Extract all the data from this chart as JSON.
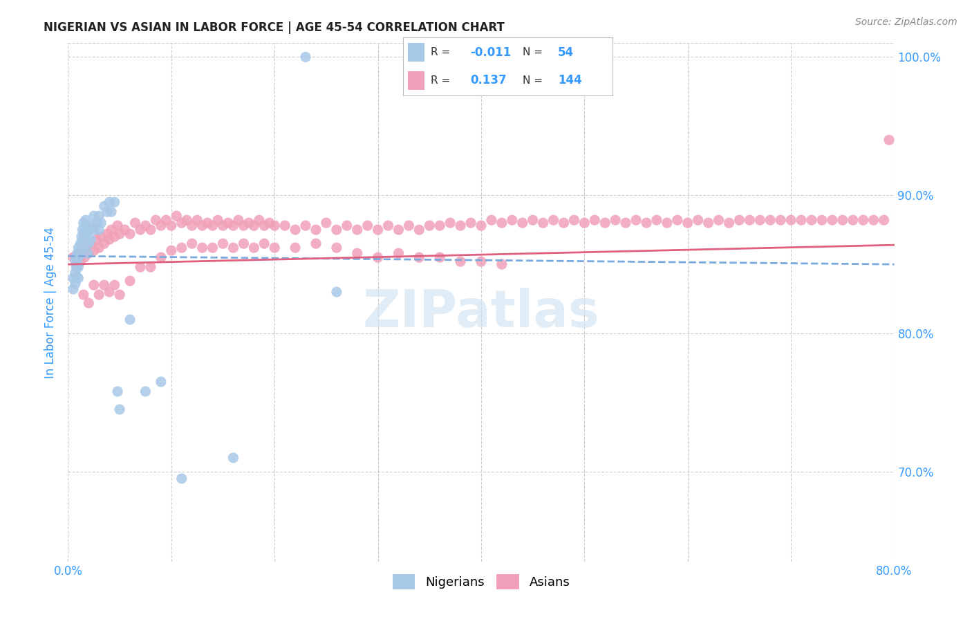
{
  "title": "NIGERIAN VS ASIAN IN LABOR FORCE | AGE 45-54 CORRELATION CHART",
  "source": "Source: ZipAtlas.com",
  "ylabel": "In Labor Force | Age 45-54",
  "xlim": [
    0.0,
    0.8
  ],
  "ylim": [
    0.635,
    1.01
  ],
  "yticks_right": [
    0.7,
    0.8,
    0.9,
    1.0
  ],
  "ytick_right_labels": [
    "70.0%",
    "80.0%",
    "90.0%",
    "100.0%"
  ],
  "nigerian_R": "-0.011",
  "nigerian_N": "54",
  "asian_R": "0.137",
  "asian_N": "144",
  "nigerian_color": "#a8c8e8",
  "asian_color": "#f0a0b8",
  "nigerian_line_color": "#7aaadd",
  "asian_line_color": "#e06080",
  "watermark": "ZIPatlas",
  "nigerian_x": [
    0.005,
    0.005,
    0.007,
    0.007,
    0.007,
    0.008,
    0.008,
    0.008,
    0.009,
    0.009,
    0.01,
    0.01,
    0.01,
    0.01,
    0.012,
    0.012,
    0.013,
    0.013,
    0.014,
    0.014,
    0.015,
    0.015,
    0.015,
    0.016,
    0.016,
    0.017,
    0.017,
    0.018,
    0.018,
    0.019,
    0.02,
    0.02,
    0.022,
    0.022,
    0.025,
    0.025,
    0.028,
    0.03,
    0.03,
    0.032,
    0.035,
    0.038,
    0.04,
    0.042,
    0.045,
    0.048,
    0.05,
    0.06,
    0.075,
    0.09,
    0.11,
    0.16,
    0.23,
    0.26
  ],
  "nigerian_y": [
    0.84,
    0.832,
    0.852,
    0.844,
    0.836,
    0.855,
    0.848,
    0.841,
    0.858,
    0.85,
    0.862,
    0.855,
    0.848,
    0.84,
    0.865,
    0.858,
    0.87,
    0.862,
    0.875,
    0.867,
    0.88,
    0.872,
    0.862,
    0.875,
    0.868,
    0.882,
    0.872,
    0.878,
    0.868,
    0.858,
    0.875,
    0.865,
    0.878,
    0.868,
    0.885,
    0.875,
    0.88,
    0.885,
    0.875,
    0.88,
    0.892,
    0.888,
    0.895,
    0.888,
    0.895,
    0.758,
    0.745,
    0.81,
    0.758,
    0.765,
    0.695,
    0.71,
    1.0,
    0.83
  ],
  "asian_x": [
    0.005,
    0.008,
    0.01,
    0.012,
    0.014,
    0.016,
    0.018,
    0.02,
    0.022,
    0.025,
    0.028,
    0.03,
    0.032,
    0.035,
    0.038,
    0.04,
    0.042,
    0.045,
    0.048,
    0.05,
    0.055,
    0.06,
    0.065,
    0.07,
    0.075,
    0.08,
    0.085,
    0.09,
    0.095,
    0.1,
    0.105,
    0.11,
    0.115,
    0.12,
    0.125,
    0.13,
    0.135,
    0.14,
    0.145,
    0.15,
    0.155,
    0.16,
    0.165,
    0.17,
    0.175,
    0.18,
    0.185,
    0.19,
    0.195,
    0.2,
    0.21,
    0.22,
    0.23,
    0.24,
    0.25,
    0.26,
    0.27,
    0.28,
    0.29,
    0.3,
    0.31,
    0.32,
    0.33,
    0.34,
    0.35,
    0.36,
    0.37,
    0.38,
    0.39,
    0.4,
    0.41,
    0.42,
    0.43,
    0.44,
    0.45,
    0.46,
    0.47,
    0.48,
    0.49,
    0.5,
    0.51,
    0.52,
    0.53,
    0.54,
    0.55,
    0.56,
    0.57,
    0.58,
    0.59,
    0.6,
    0.61,
    0.62,
    0.63,
    0.64,
    0.65,
    0.66,
    0.67,
    0.68,
    0.69,
    0.7,
    0.71,
    0.72,
    0.73,
    0.74,
    0.75,
    0.76,
    0.77,
    0.78,
    0.79,
    0.795,
    0.015,
    0.02,
    0.025,
    0.03,
    0.035,
    0.04,
    0.045,
    0.05,
    0.06,
    0.07,
    0.08,
    0.09,
    0.1,
    0.11,
    0.12,
    0.13,
    0.14,
    0.15,
    0.16,
    0.17,
    0.18,
    0.19,
    0.2,
    0.22,
    0.24,
    0.26,
    0.28,
    0.3,
    0.32,
    0.34,
    0.36,
    0.38,
    0.4,
    0.42
  ],
  "asian_y": [
    0.855,
    0.85,
    0.858,
    0.852,
    0.86,
    0.855,
    0.862,
    0.858,
    0.865,
    0.86,
    0.868,
    0.862,
    0.87,
    0.865,
    0.872,
    0.868,
    0.875,
    0.87,
    0.878,
    0.872,
    0.875,
    0.872,
    0.88,
    0.875,
    0.878,
    0.875,
    0.882,
    0.878,
    0.882,
    0.878,
    0.885,
    0.88,
    0.882,
    0.878,
    0.882,
    0.878,
    0.88,
    0.878,
    0.882,
    0.878,
    0.88,
    0.878,
    0.882,
    0.878,
    0.88,
    0.878,
    0.882,
    0.878,
    0.88,
    0.878,
    0.878,
    0.875,
    0.878,
    0.875,
    0.88,
    0.875,
    0.878,
    0.875,
    0.878,
    0.875,
    0.878,
    0.875,
    0.878,
    0.875,
    0.878,
    0.878,
    0.88,
    0.878,
    0.88,
    0.878,
    0.882,
    0.88,
    0.882,
    0.88,
    0.882,
    0.88,
    0.882,
    0.88,
    0.882,
    0.88,
    0.882,
    0.88,
    0.882,
    0.88,
    0.882,
    0.88,
    0.882,
    0.88,
    0.882,
    0.88,
    0.882,
    0.88,
    0.882,
    0.88,
    0.882,
    0.882,
    0.882,
    0.882,
    0.882,
    0.882,
    0.882,
    0.882,
    0.882,
    0.882,
    0.882,
    0.882,
    0.882,
    0.882,
    0.882,
    0.94,
    0.828,
    0.822,
    0.835,
    0.828,
    0.835,
    0.83,
    0.835,
    0.828,
    0.838,
    0.848,
    0.848,
    0.855,
    0.86,
    0.862,
    0.865,
    0.862,
    0.862,
    0.865,
    0.862,
    0.865,
    0.862,
    0.865,
    0.862,
    0.862,
    0.865,
    0.862,
    0.858,
    0.855,
    0.858,
    0.855,
    0.855,
    0.852,
    0.852,
    0.85
  ]
}
